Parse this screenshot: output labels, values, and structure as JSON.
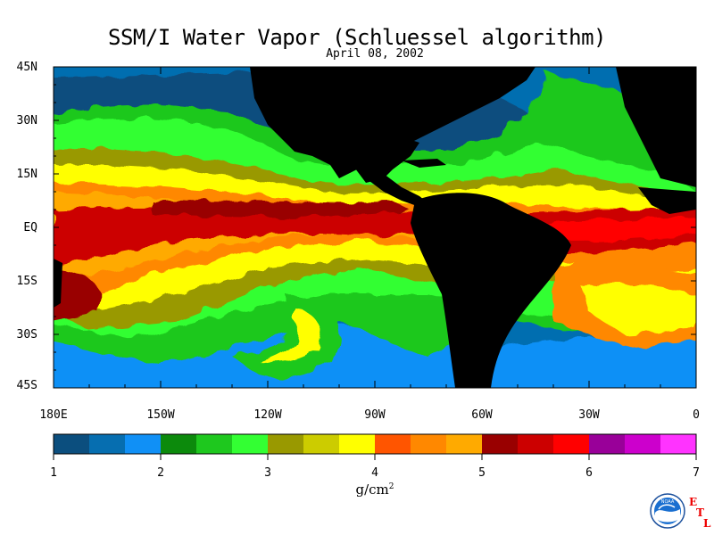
{
  "title": "SSM/I Water Vapor (Schluessel algorithm)",
  "subtitle": "April 08, 2002",
  "lat_labels": [
    "45N",
    "30N",
    "15N",
    "EQ",
    "15S",
    "30S",
    "45S"
  ],
  "lon_labels": [
    "180E",
    "150W",
    "120W",
    "90W",
    "60W",
    "30W",
    "0"
  ],
  "colorbar": {
    "colors": [
      "#0b4e7e",
      "#066eb0",
      "#1090f6",
      "#0c8a0c",
      "#1ec81e",
      "#33ff33",
      "#999900",
      "#cccc00",
      "#ffff00",
      "#ff5500",
      "#ff8800",
      "#ffaa00",
      "#990000",
      "#cc0000",
      "#ff0000",
      "#990099",
      "#cc00cc",
      "#ff33ff"
    ],
    "ticks": [
      "1",
      "2",
      "3",
      "4",
      "5",
      "6",
      "7"
    ],
    "units": "g/cm",
    "units_sup": "2"
  },
  "logo": {
    "icon": "noaa-logo",
    "text": "NOAA",
    "etl": [
      "E",
      "T",
      "L"
    ]
  },
  "colors": {
    "land": "#000000",
    "text": "#000000",
    "accent": "#e00000"
  }
}
